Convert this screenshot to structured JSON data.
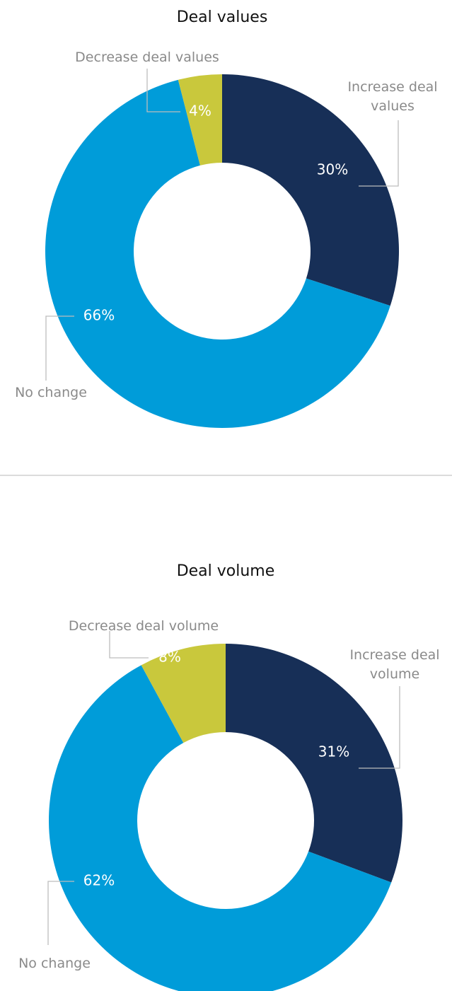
{
  "chart_data": [
    {
      "type": "donut",
      "title": "Deal values",
      "categories": [
        "Increase deal values",
        "No change",
        "Decrease deal values"
      ],
      "values": [
        30,
        66,
        4
      ],
      "value_labels": [
        "30%",
        "66%",
        "4%"
      ],
      "colors": [
        "#172f57",
        "#009cd9",
        "#c9c83c"
      ]
    },
    {
      "type": "donut",
      "title": "Deal volume",
      "categories": [
        "Increase deal volume",
        "No change",
        "Decrease deal volume"
      ],
      "values": [
        31,
        62,
        8
      ],
      "value_labels": [
        "31%",
        "62%",
        "8%"
      ],
      "colors": [
        "#172f57",
        "#009cd9",
        "#c9c83c"
      ]
    }
  ]
}
